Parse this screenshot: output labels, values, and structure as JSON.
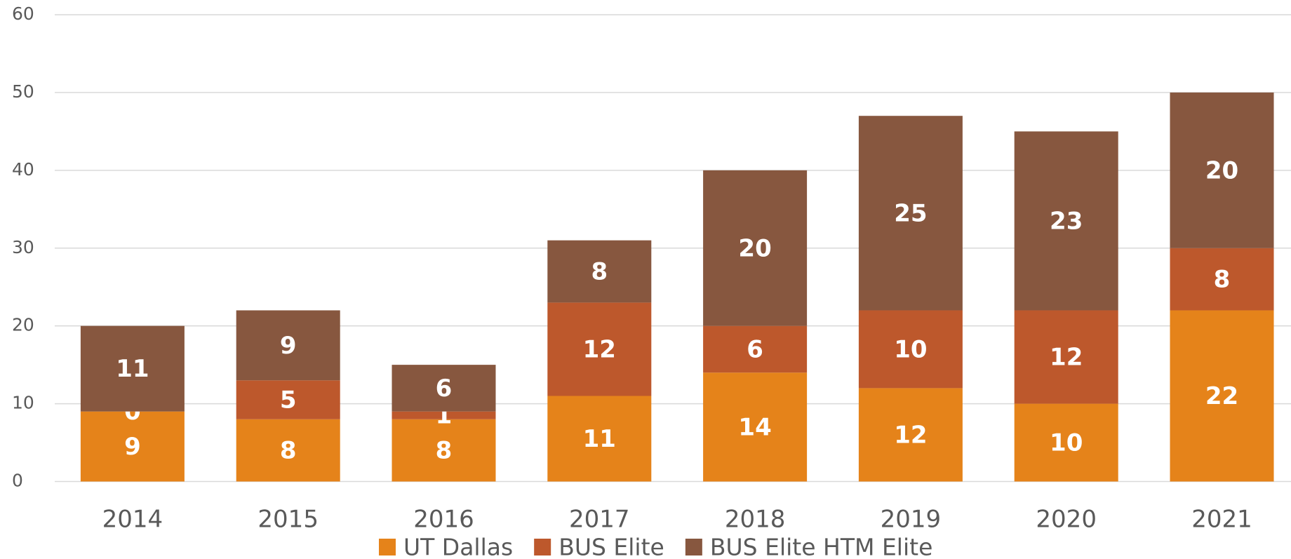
{
  "chart_data": {
    "type": "stacked_bar",
    "categories": [
      "2014",
      "2015",
      "2016",
      "2017",
      "2018",
      "2019",
      "2020",
      "2021"
    ],
    "series": [
      {
        "name": "UT Dallas",
        "color": "#E5831A",
        "values": [
          9,
          8,
          8,
          11,
          14,
          12,
          10,
          22
        ]
      },
      {
        "name": "BUS Elite",
        "color": "#BD582C",
        "values": [
          0,
          5,
          1,
          12,
          6,
          10,
          12,
          8
        ]
      },
      {
        "name": "BUS Elite HTM Elite",
        "color": "#87573F",
        "values": [
          11,
          9,
          6,
          8,
          20,
          25,
          23,
          20
        ]
      }
    ],
    "ylim": [
      0,
      60
    ],
    "yticks": [
      0,
      10,
      20,
      30,
      40,
      50,
      60
    ],
    "grid": true,
    "legend": "bottom"
  }
}
